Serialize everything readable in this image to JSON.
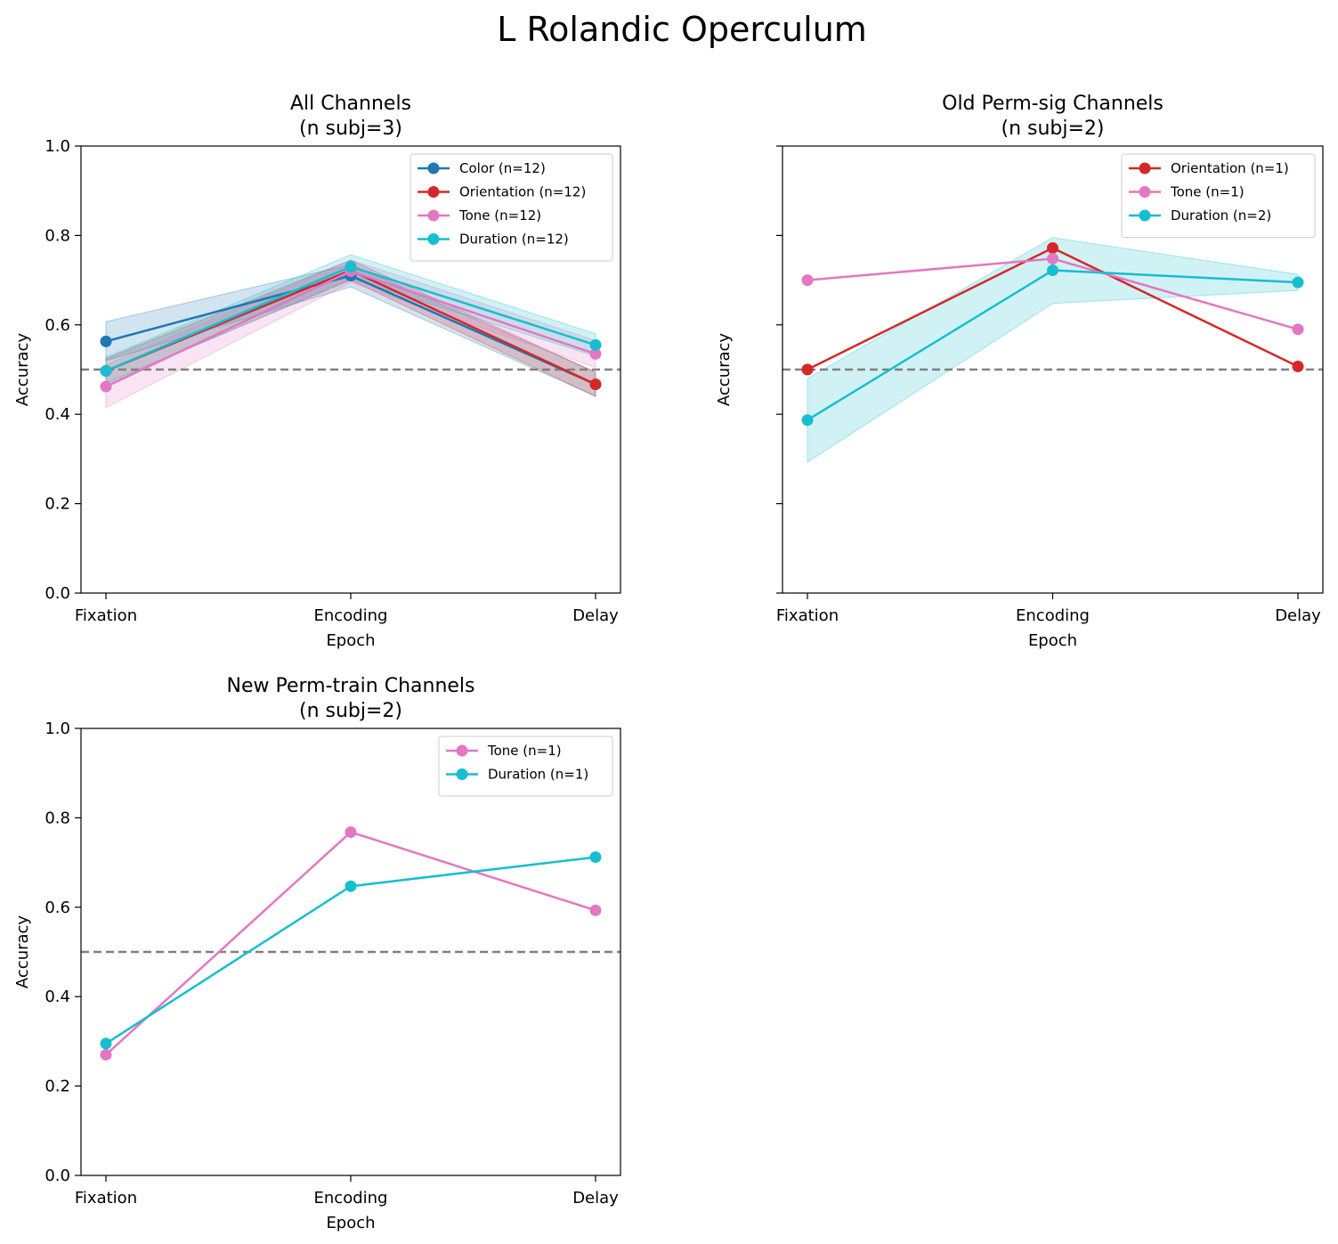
{
  "figure": {
    "suptitle": "L Rolandic Operculum",
    "reference_line": 0.5
  },
  "colors": {
    "Color": "#1f77b4",
    "Orientation": "#d62728",
    "Tone": "#e377c2",
    "Duration": "#17becf",
    "reference": "#808080"
  },
  "chart_data": [
    {
      "type": "line",
      "title": [
        "All Channels",
        "(n subj=3)"
      ],
      "xlabel": "Epoch",
      "ylabel": "Accuracy",
      "categories": [
        "Fixation",
        "Encoding",
        "Delay"
      ],
      "ylim": [
        0,
        1.0
      ],
      "yticks": [
        "0.0",
        "0.2",
        "0.4",
        "0.6",
        "0.8",
        "1.0"
      ],
      "show_ytick_labels": true,
      "legend_position": "upper-right",
      "series": [
        {
          "name": "Color (n=12)",
          "key": "Color",
          "values": [
            0.563,
            0.71,
            0.467
          ],
          "lower": [
            0.52,
            0.685,
            0.44
          ],
          "upper": [
            0.607,
            0.735,
            0.494
          ]
        },
        {
          "name": "Orientation (n=12)",
          "key": "Orientation",
          "values": [
            0.497,
            0.722,
            0.467
          ],
          "lower": [
            0.47,
            0.7,
            0.44
          ],
          "upper": [
            0.524,
            0.745,
            0.494
          ]
        },
        {
          "name": "Tone (n=12)",
          "key": "Tone",
          "values": [
            0.462,
            0.72,
            0.535
          ],
          "lower": [
            0.415,
            0.695,
            0.505
          ],
          "upper": [
            0.51,
            0.745,
            0.565
          ]
        },
        {
          "name": "Duration (n=12)",
          "key": "Duration",
          "values": [
            0.497,
            0.73,
            0.555
          ],
          "lower": [
            0.467,
            0.703,
            0.53
          ],
          "upper": [
            0.527,
            0.757,
            0.58
          ]
        }
      ]
    },
    {
      "type": "line",
      "title": [
        "Old Perm-sig Channels",
        "(n subj=2)"
      ],
      "xlabel": "Epoch",
      "ylabel": "Accuracy",
      "categories": [
        "Fixation",
        "Encoding",
        "Delay"
      ],
      "ylim": [
        0,
        1.0
      ],
      "yticks": [
        "0.0",
        "0.2",
        "0.4",
        "0.6",
        "0.8",
        "1.0"
      ],
      "show_ytick_labels": false,
      "legend_position": "upper-right",
      "series": [
        {
          "name": "Orientation (n=1)",
          "key": "Orientation",
          "values": [
            0.5,
            0.772,
            0.507
          ]
        },
        {
          "name": "Tone (n=1)",
          "key": "Tone",
          "values": [
            0.7,
            0.748,
            0.59
          ]
        },
        {
          "name": "Duration (n=2)",
          "key": "Duration",
          "values": [
            0.387,
            0.722,
            0.695
          ],
          "lower": [
            0.293,
            0.648,
            0.677
          ],
          "upper": [
            0.48,
            0.795,
            0.713
          ]
        }
      ]
    },
    {
      "type": "line",
      "title": [
        "New Perm-train Channels",
        "(n subj=2)"
      ],
      "xlabel": "Epoch",
      "ylabel": "Accuracy",
      "categories": [
        "Fixation",
        "Encoding",
        "Delay"
      ],
      "ylim": [
        0,
        1.0
      ],
      "yticks": [
        "0.0",
        "0.2",
        "0.4",
        "0.6",
        "0.8",
        "1.0"
      ],
      "show_ytick_labels": true,
      "legend_position": "upper-right",
      "series": [
        {
          "name": "Tone (n=1)",
          "key": "Tone",
          "values": [
            0.27,
            0.768,
            0.593
          ]
        },
        {
          "name": "Duration (n=1)",
          "key": "Duration",
          "values": [
            0.295,
            0.647,
            0.712
          ]
        }
      ]
    }
  ]
}
